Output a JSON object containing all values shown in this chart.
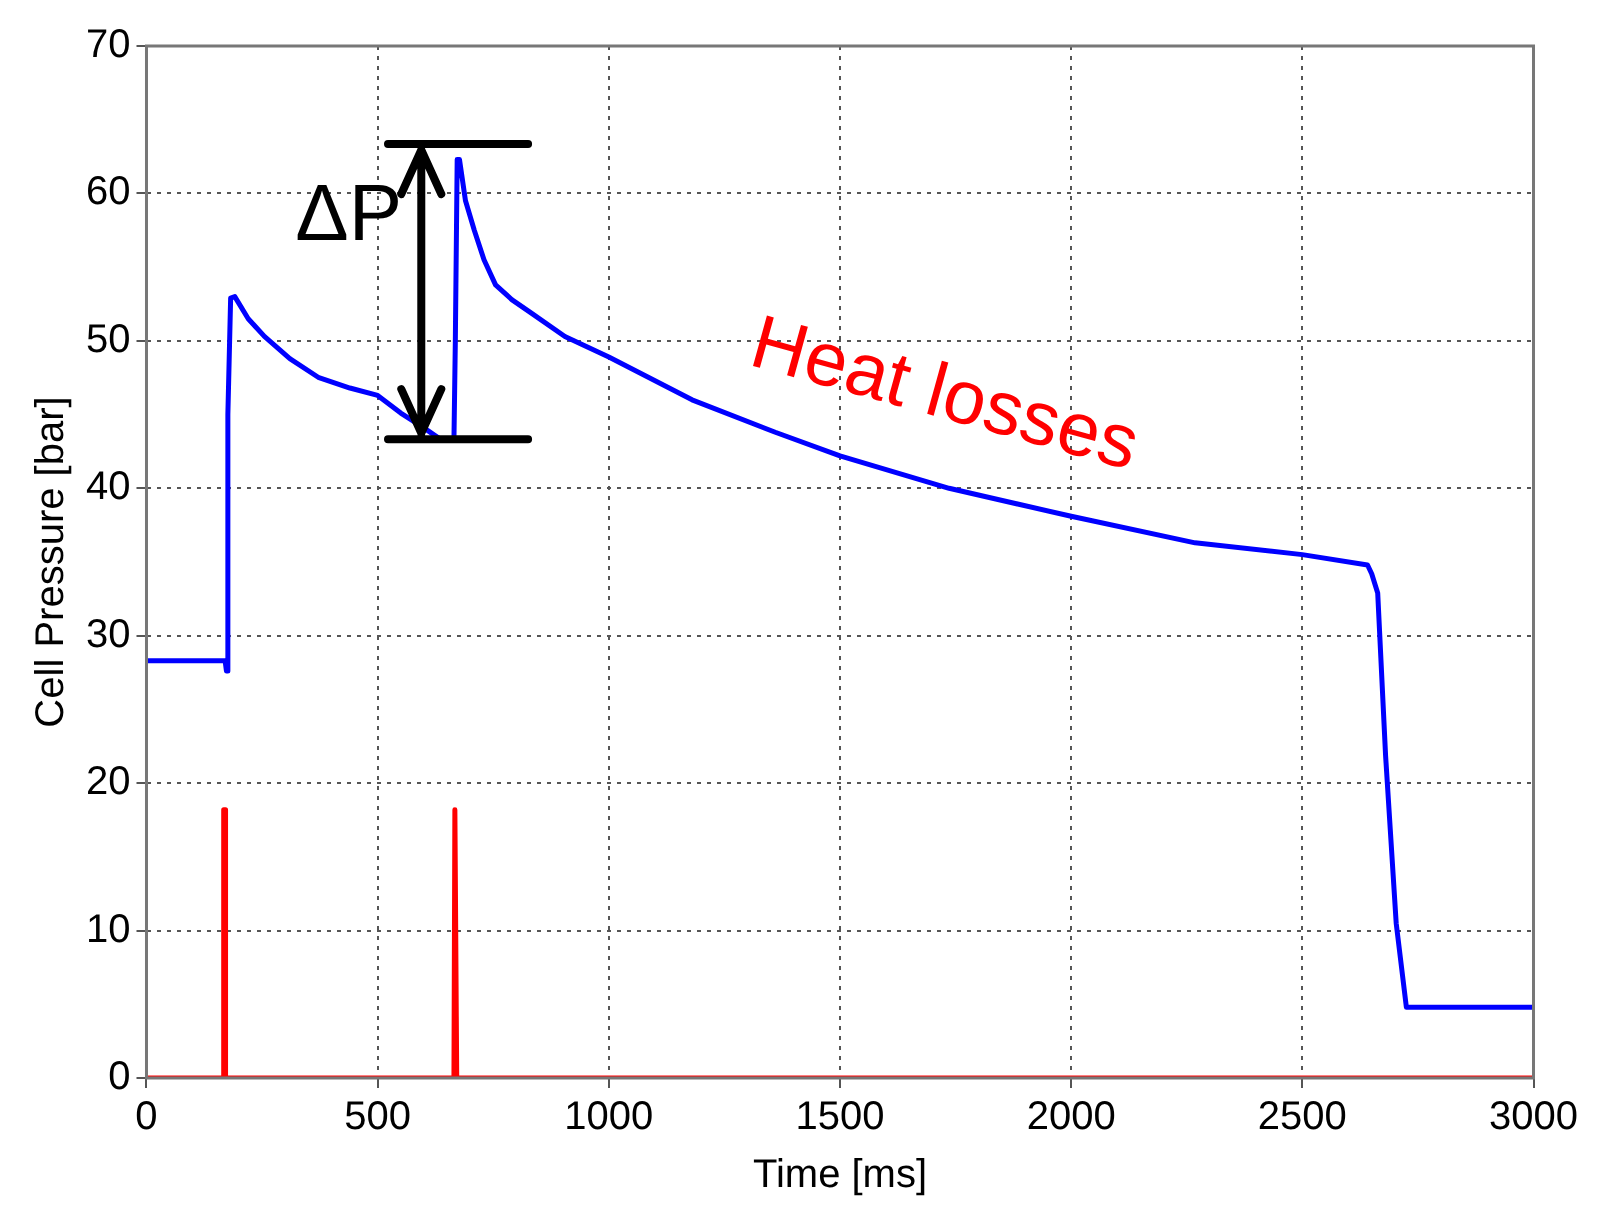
{
  "chart_data": {
    "type": "line",
    "xlabel": "Time [ms]",
    "ylabel": "Cell Pressure [bar]",
    "xlim": [
      0,
      3000
    ],
    "xticks": [
      0,
      500,
      1000,
      1500,
      2000,
      2500,
      3000
    ],
    "ylim": [
      0,
      70
    ],
    "yticks": [
      0,
      10,
      20,
      30,
      40,
      50,
      60,
      70
    ],
    "grid": true,
    "legend": false,
    "marker": "none",
    "line_style": "solid",
    "annotations": [
      {
        "text": "ΔP",
        "x": 632,
        "y": 43.4
      },
      "Heat losses"
    ],
    "series": [
      {
        "color": "#0000ff",
        "x": [
          0,
          170,
          173,
          176,
          182,
          191,
          220,
          255,
          310,
          373,
          440,
          500,
          550,
          600,
          632,
          665,
          668,
          672,
          677,
          690,
          709,
          730,
          755,
          790,
          827,
          905,
          1000,
          1180,
          1360,
          1500,
          1736,
          2000,
          2268,
          2500,
          2641,
          2650,
          2663,
          2680,
          2703,
          2725,
          3000
        ],
        "values": [
          28.3,
          28.3,
          27.6,
          45,
          52.9,
          53,
          51.5,
          50.3,
          48.8,
          47.5,
          46.8,
          46.3,
          45.1,
          44.1,
          43.4,
          43.3,
          50,
          62.3,
          62.3,
          59.5,
          57.5,
          55.5,
          53.8,
          52.8,
          52,
          50.3,
          48.9,
          46,
          43.8,
          42.2,
          40,
          38.1,
          36.3,
          35.5,
          34.8,
          34.2,
          32.9,
          21.9,
          10.5,
          4.8,
          4.8
        ]
      },
      {
        "color": "#ff0000",
        "x": [
          0,
          165,
          167,
          169,
          171,
          665,
          667,
          669,
          671,
          3000
        ],
        "values": [
          0,
          0,
          18.2,
          18.2,
          0,
          0,
          18.2,
          18.2,
          0,
          0
        ]
      }
    ]
  }
}
